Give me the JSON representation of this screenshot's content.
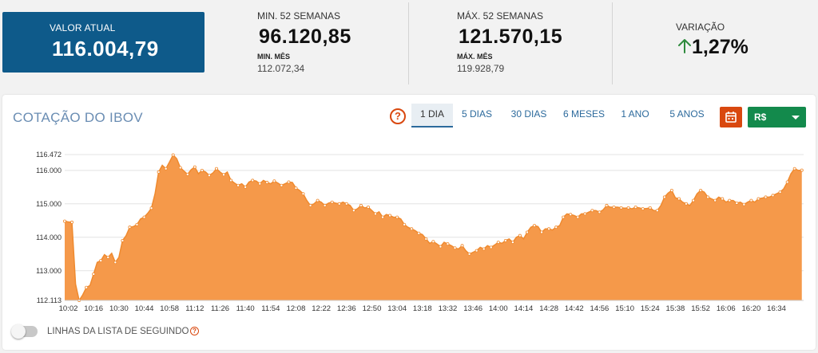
{
  "stats": {
    "current": {
      "label": "VALOR ATUAL",
      "value": "116.004,79"
    },
    "min52": {
      "label": "MIN. 52 SEMANAS",
      "value": "96.120,85",
      "sub_label": "MIN. MÊS",
      "sub_value": "112.072,34"
    },
    "max52": {
      "label": "MÁX. 52 SEMANAS",
      "value": "121.570,15",
      "sub_label": "MÁX. MÊS",
      "sub_value": "119.928,79"
    },
    "variation": {
      "label": "VARIAÇÃO",
      "value": "1,27%",
      "direction": "up",
      "color": "#2e8b3d"
    }
  },
  "chart_card": {
    "title": "COTAÇÃO DO IBOV",
    "tabs": [
      "1 DIA",
      "5 DIAS",
      "30 DIAS",
      "6 MESES",
      "1 ANO",
      "5 ANOS"
    ],
    "active_tab": "1 DIA",
    "currency": "R$",
    "toggle_label": "LINHAS DA LISTA DE SEGUINDO",
    "help_glyph": "?",
    "colors": {
      "area": "#f5994a",
      "line": "#ef8a2f",
      "accent": "#d9480f",
      "currency_bg": "#138a4c",
      "value_bg": "#0e5a8a"
    }
  },
  "chart_data": {
    "type": "area",
    "title": "",
    "xlabel": "",
    "ylabel": "",
    "y_ticks": [
      {
        "value": 112113,
        "label": "112.113"
      },
      {
        "value": 113000,
        "label": "113.000"
      },
      {
        "value": 114000,
        "label": "114.000"
      },
      {
        "value": 115000,
        "label": "115.000"
      },
      {
        "value": 116000,
        "label": "116.000"
      },
      {
        "value": 116472,
        "label": "116.472"
      }
    ],
    "ylim": [
      112113,
      116472
    ],
    "x_tick_labels": [
      "10:02",
      "10:16",
      "10:30",
      "10:44",
      "10:58",
      "11:12",
      "11:26",
      "11:40",
      "11:54",
      "12:08",
      "12:22",
      "12:36",
      "12:50",
      "13:04",
      "13:18",
      "13:32",
      "13:46",
      "14:00",
      "14:14",
      "14:28",
      "14:42",
      "14:56",
      "15:10",
      "15:24",
      "15:38",
      "15:52",
      "16:06",
      "16:20",
      "16:34"
    ],
    "xlim": [
      "10:00",
      "16:49"
    ],
    "grid": "horizontal",
    "series": [
      {
        "points": [
          [
            "10:00",
            114480
          ],
          [
            "10:02",
            114460
          ],
          [
            "10:04",
            114450
          ],
          [
            "10:06",
            112600
          ],
          [
            "10:08",
            112113
          ],
          [
            "10:10",
            112280
          ],
          [
            "10:12",
            112500
          ],
          [
            "10:14",
            112560
          ],
          [
            "10:16",
            112900
          ],
          [
            "10:18",
            113250
          ],
          [
            "10:20",
            113300
          ],
          [
            "10:22",
            113480
          ],
          [
            "10:24",
            113400
          ],
          [
            "10:26",
            113520
          ],
          [
            "10:28",
            113250
          ],
          [
            "10:30",
            113400
          ],
          [
            "10:32",
            113900
          ],
          [
            "10:34",
            114050
          ],
          [
            "10:36",
            114300
          ],
          [
            "10:38",
            114320
          ],
          [
            "10:40",
            114380
          ],
          [
            "10:42",
            114550
          ],
          [
            "10:44",
            114600
          ],
          [
            "10:46",
            114720
          ],
          [
            "10:48",
            114870
          ],
          [
            "10:50",
            115300
          ],
          [
            "10:52",
            115950
          ],
          [
            "10:54",
            116150
          ],
          [
            "10:56",
            116050
          ],
          [
            "10:58",
            116250
          ],
          [
            "11:00",
            116460
          ],
          [
            "11:02",
            116350
          ],
          [
            "11:04",
            116080
          ],
          [
            "11:06",
            115980
          ],
          [
            "11:08",
            115880
          ],
          [
            "11:10",
            116020
          ],
          [
            "11:12",
            116100
          ],
          [
            "11:14",
            115900
          ],
          [
            "11:16",
            116000
          ],
          [
            "11:18",
            115950
          ],
          [
            "11:20",
            115850
          ],
          [
            "11:22",
            115920
          ],
          [
            "11:24",
            116050
          ],
          [
            "11:26",
            115950
          ],
          [
            "11:28",
            115870
          ],
          [
            "11:30",
            115950
          ],
          [
            "11:32",
            115700
          ],
          [
            "11:34",
            115620
          ],
          [
            "11:36",
            115550
          ],
          [
            "11:38",
            115600
          ],
          [
            "11:40",
            115500
          ],
          [
            "11:42",
            115650
          ],
          [
            "11:44",
            115700
          ],
          [
            "11:46",
            115680
          ],
          [
            "11:48",
            115600
          ],
          [
            "11:50",
            115700
          ],
          [
            "11:52",
            115640
          ],
          [
            "11:54",
            115600
          ],
          [
            "11:56",
            115680
          ],
          [
            "11:58",
            115620
          ],
          [
            "12:00",
            115550
          ],
          [
            "12:02",
            115600
          ],
          [
            "12:04",
            115650
          ],
          [
            "12:06",
            115640
          ],
          [
            "12:08",
            115470
          ],
          [
            "12:10",
            115400
          ],
          [
            "12:12",
            115300
          ],
          [
            "12:14",
            115100
          ],
          [
            "12:16",
            114950
          ],
          [
            "12:18",
            115000
          ],
          [
            "12:20",
            115100
          ],
          [
            "12:22",
            115050
          ],
          [
            "12:24",
            114950
          ],
          [
            "12:26",
            115020
          ],
          [
            "12:28",
            115050
          ],
          [
            "12:30",
            115020
          ],
          [
            "12:32",
            115000
          ],
          [
            "12:34",
            115050
          ],
          [
            "12:36",
            115000
          ],
          [
            "12:38",
            114950
          ],
          [
            "12:40",
            114800
          ],
          [
            "12:42",
            114850
          ],
          [
            "12:44",
            114950
          ],
          [
            "12:46",
            114880
          ],
          [
            "12:48",
            114900
          ],
          [
            "12:50",
            114800
          ],
          [
            "12:52",
            114700
          ],
          [
            "12:54",
            114760
          ],
          [
            "12:56",
            114600
          ],
          [
            "12:58",
            114680
          ],
          [
            "13:00",
            114650
          ],
          [
            "13:02",
            114600
          ],
          [
            "13:04",
            114600
          ],
          [
            "13:06",
            114550
          ],
          [
            "13:08",
            114380
          ],
          [
            "13:10",
            114300
          ],
          [
            "13:12",
            114250
          ],
          [
            "13:14",
            114200
          ],
          [
            "13:16",
            114120
          ],
          [
            "13:18",
            114080
          ],
          [
            "13:20",
            113950
          ],
          [
            "13:22",
            113820
          ],
          [
            "13:24",
            113870
          ],
          [
            "13:26",
            113800
          ],
          [
            "13:28",
            113720
          ],
          [
            "13:30",
            113850
          ],
          [
            "13:32",
            113800
          ],
          [
            "13:34",
            113750
          ],
          [
            "13:36",
            113680
          ],
          [
            "13:38",
            113650
          ],
          [
            "13:40",
            113750
          ],
          [
            "13:42",
            113600
          ],
          [
            "13:44",
            113500
          ],
          [
            "13:46",
            113550
          ],
          [
            "13:48",
            113600
          ],
          [
            "13:50",
            113700
          ],
          [
            "13:52",
            113650
          ],
          [
            "13:54",
            113750
          ],
          [
            "13:56",
            113700
          ],
          [
            "13:58",
            113770
          ],
          [
            "14:00",
            113850
          ],
          [
            "14:02",
            113820
          ],
          [
            "14:04",
            113900
          ],
          [
            "14:06",
            113950
          ],
          [
            "14:08",
            113850
          ],
          [
            "14:10",
            114000
          ],
          [
            "14:12",
            114050
          ],
          [
            "14:14",
            113950
          ],
          [
            "14:16",
            114150
          ],
          [
            "14:18",
            114300
          ],
          [
            "14:20",
            114350
          ],
          [
            "14:22",
            114320
          ],
          [
            "14:24",
            114150
          ],
          [
            "14:26",
            114250
          ],
          [
            "14:28",
            114250
          ],
          [
            "14:30",
            114220
          ],
          [
            "14:32",
            114300
          ],
          [
            "14:34",
            114350
          ],
          [
            "14:36",
            114600
          ],
          [
            "14:38",
            114700
          ],
          [
            "14:40",
            114680
          ],
          [
            "14:42",
            114650
          ],
          [
            "14:44",
            114600
          ],
          [
            "14:46",
            114700
          ],
          [
            "14:48",
            114700
          ],
          [
            "14:50",
            114750
          ],
          [
            "14:52",
            114800
          ],
          [
            "14:54",
            114800
          ],
          [
            "14:56",
            114750
          ],
          [
            "14:58",
            114820
          ],
          [
            "15:00",
            114950
          ],
          [
            "15:02",
            114900
          ],
          [
            "15:04",
            114900
          ],
          [
            "15:06",
            114900
          ],
          [
            "15:08",
            114880
          ],
          [
            "15:10",
            114870
          ],
          [
            "15:12",
            114880
          ],
          [
            "15:14",
            114850
          ],
          [
            "15:16",
            114900
          ],
          [
            "15:18",
            114880
          ],
          [
            "15:20",
            114850
          ],
          [
            "15:22",
            114860
          ],
          [
            "15:24",
            114880
          ],
          [
            "15:26",
            114800
          ],
          [
            "15:28",
            114800
          ],
          [
            "15:30",
            114950
          ],
          [
            "15:32",
            115200
          ],
          [
            "15:34",
            115320
          ],
          [
            "15:36",
            115400
          ],
          [
            "15:38",
            115180
          ],
          [
            "15:40",
            115150
          ],
          [
            "15:42",
            115050
          ],
          [
            "15:44",
            115000
          ],
          [
            "15:46",
            114950
          ],
          [
            "15:48",
            115100
          ],
          [
            "15:50",
            115300
          ],
          [
            "15:52",
            115400
          ],
          [
            "15:54",
            115350
          ],
          [
            "15:56",
            115200
          ],
          [
            "15:58",
            115150
          ],
          [
            "16:00",
            115100
          ],
          [
            "16:02",
            115200
          ],
          [
            "16:04",
            115150
          ],
          [
            "16:06",
            115050
          ],
          [
            "16:08",
            115100
          ],
          [
            "16:10",
            115100
          ],
          [
            "16:12",
            115020
          ],
          [
            "16:14",
            115050
          ],
          [
            "16:16",
            114980
          ],
          [
            "16:18",
            115050
          ],
          [
            "16:20",
            115100
          ],
          [
            "16:22",
            115050
          ],
          [
            "16:24",
            115150
          ],
          [
            "16:26",
            115170
          ],
          [
            "16:28",
            115200
          ],
          [
            "16:30",
            115200
          ],
          [
            "16:32",
            115250
          ],
          [
            "16:34",
            115300
          ],
          [
            "16:36",
            115350
          ],
          [
            "16:38",
            115450
          ],
          [
            "16:40",
            115650
          ],
          [
            "16:42",
            115900
          ],
          [
            "16:44",
            116050
          ],
          [
            "16:46",
            116000
          ],
          [
            "16:48",
            116005
          ]
        ]
      }
    ]
  }
}
